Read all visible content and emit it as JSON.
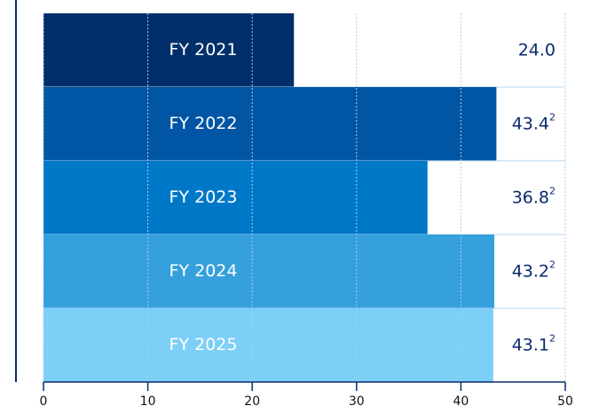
{
  "chart_data": {
    "type": "barh",
    "categories": [
      "FY 2021",
      "FY 2022",
      "FY 2023",
      "FY 2024",
      "FY 2025"
    ],
    "values": [
      24.0,
      43.4,
      36.8,
      43.2,
      43.1
    ],
    "value_labels": [
      "24.0",
      "43.4",
      "36.8",
      "43.2",
      "43.1"
    ],
    "value_notes": [
      null,
      "2",
      "2",
      "2",
      "2"
    ],
    "colors": [
      "#002f6c",
      "#0055a4",
      "#0078c8",
      "#34a0dc",
      "#7ccff7"
    ],
    "xlim": [
      0,
      50
    ],
    "xticks": [
      0,
      10,
      20,
      30,
      40,
      50
    ],
    "grid": true
  }
}
